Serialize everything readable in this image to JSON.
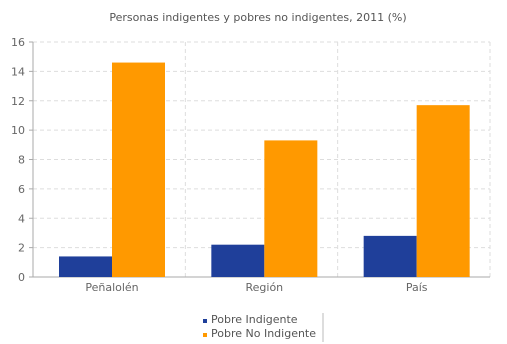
{
  "chart_data": {
    "type": "bar",
    "title": "Personas indigentes y pobres no indigentes, 2011 (%)",
    "categories": [
      "Peñalolén",
      "Región",
      "País"
    ],
    "series": [
      {
        "name": "Pobre Indigente",
        "values": [
          1.4,
          2.2,
          2.8
        ],
        "color": "#1f3f9a"
      },
      {
        "name": "Pobre No Indigente",
        "values": [
          14.6,
          9.3,
          11.7
        ],
        "color": "#ff9900"
      }
    ],
    "ylim": [
      0,
      16
    ],
    "yticks": [
      0,
      2,
      4,
      6,
      8,
      10,
      12,
      14,
      16
    ],
    "xlabel": "",
    "ylabel": "",
    "grid": true,
    "legend": "bottom-center",
    "gridColor": "#dddddd",
    "axisColor": "#aaaaaa"
  }
}
